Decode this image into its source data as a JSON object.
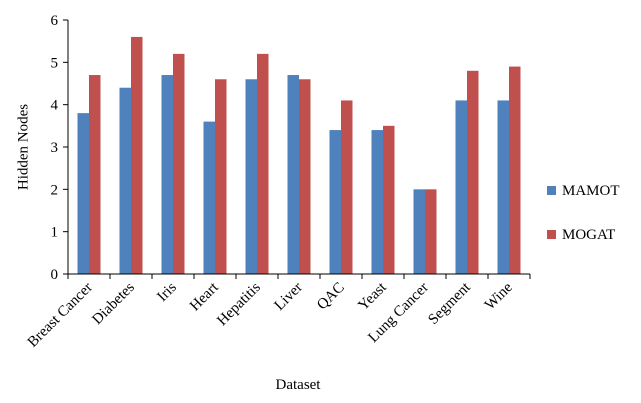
{
  "chart_data": {
    "type": "bar",
    "title": "",
    "xlabel": "Dataset",
    "ylabel": "Hidden Nodes",
    "ylim": [
      0,
      6
    ],
    "yticks": [
      0,
      1,
      2,
      3,
      4,
      5,
      6
    ],
    "grid": false,
    "legend_position": "right",
    "categories": [
      "Breast Cancer",
      "Diabetes",
      "Iris",
      "Heart",
      "Hepatitis",
      "Liver",
      "QAC",
      "Yeast",
      "Lung Cancer",
      "Segment",
      "Wine"
    ],
    "series": [
      {
        "name": "MAMOT",
        "color": "#4f81bd",
        "values": [
          3.8,
          4.4,
          4.7,
          3.6,
          4.6,
          4.7,
          3.4,
          3.4,
          2.0,
          4.1,
          4.1
        ]
      },
      {
        "name": "MOGAT",
        "color": "#c0504d",
        "values": [
          4.7,
          5.6,
          5.2,
          4.6,
          5.2,
          4.6,
          4.1,
          3.5,
          2.0,
          4.8,
          4.9
        ]
      }
    ]
  }
}
